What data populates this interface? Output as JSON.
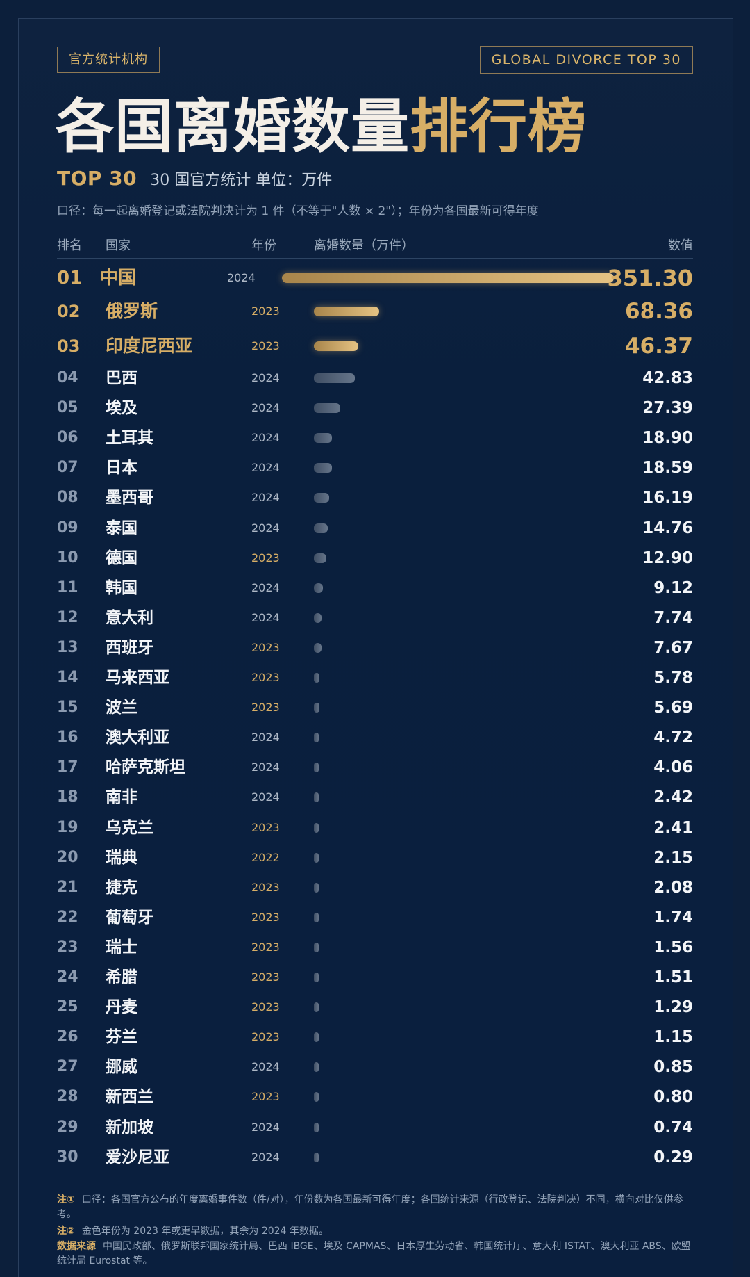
{
  "header": {
    "tag_left": "官方统计机构",
    "tag_right": "GLOBAL DIVORCE TOP 30",
    "title_white": "各国离婚数量",
    "title_gold": "排行榜",
    "sub_top": "TOP 30",
    "sub_text": "30 国官方统计   单位：万件",
    "note": "口径：每一起离婚登记或法院判决计为 1 件（不等于\"人数 × 2\"）；年份为各国最新可得年度"
  },
  "columns": {
    "rank": "排名",
    "country": "国家",
    "year": "年份",
    "bar": "离婚数量（万件）",
    "value": "数值"
  },
  "colors": {
    "gold": "#d7ae66",
    "background": "#0c1f3b",
    "grey_bar": "#5a697e"
  },
  "chart_data": {
    "type": "bar",
    "orientation": "horizontal",
    "unit": "万件",
    "rows": [
      {
        "rank": "01",
        "country": "中国",
        "year": "2024",
        "value": 351.3,
        "value_text": "351.30"
      },
      {
        "rank": "02",
        "country": "俄罗斯",
        "year": "2023",
        "value": 68.36,
        "value_text": "68.36"
      },
      {
        "rank": "03",
        "country": "印度尼西亚",
        "year": "2023",
        "value": 46.37,
        "value_text": "46.37"
      },
      {
        "rank": "04",
        "country": "巴西",
        "year": "2024",
        "value": 42.83,
        "value_text": "42.83"
      },
      {
        "rank": "05",
        "country": "埃及",
        "year": "2024",
        "value": 27.39,
        "value_text": "27.39"
      },
      {
        "rank": "06",
        "country": "土耳其",
        "year": "2024",
        "value": 18.9,
        "value_text": "18.90"
      },
      {
        "rank": "07",
        "country": "日本",
        "year": "2024",
        "value": 18.59,
        "value_text": "18.59"
      },
      {
        "rank": "08",
        "country": "墨西哥",
        "year": "2024",
        "value": 16.19,
        "value_text": "16.19"
      },
      {
        "rank": "09",
        "country": "泰国",
        "year": "2024",
        "value": 14.76,
        "value_text": "14.76"
      },
      {
        "rank": "10",
        "country": "德国",
        "year": "2023",
        "value": 12.9,
        "value_text": "12.90"
      },
      {
        "rank": "11",
        "country": "韩国",
        "year": "2024",
        "value": 9.12,
        "value_text": "9.12"
      },
      {
        "rank": "12",
        "country": "意大利",
        "year": "2024",
        "value": 7.74,
        "value_text": "7.74"
      },
      {
        "rank": "13",
        "country": "西班牙",
        "year": "2023",
        "value": 7.67,
        "value_text": "7.67"
      },
      {
        "rank": "14",
        "country": "马来西亚",
        "year": "2023",
        "value": 5.78,
        "value_text": "5.78"
      },
      {
        "rank": "15",
        "country": "波兰",
        "year": "2023",
        "value": 5.69,
        "value_text": "5.69"
      },
      {
        "rank": "16",
        "country": "澳大利亚",
        "year": "2024",
        "value": 4.72,
        "value_text": "4.72"
      },
      {
        "rank": "17",
        "country": "哈萨克斯坦",
        "year": "2024",
        "value": 4.06,
        "value_text": "4.06"
      },
      {
        "rank": "18",
        "country": "南非",
        "year": "2024",
        "value": 2.42,
        "value_text": "2.42"
      },
      {
        "rank": "19",
        "country": "乌克兰",
        "year": "2023",
        "value": 2.41,
        "value_text": "2.41"
      },
      {
        "rank": "20",
        "country": "瑞典",
        "year": "2022",
        "value": 2.15,
        "value_text": "2.15"
      },
      {
        "rank": "21",
        "country": "捷克",
        "year": "2023",
        "value": 2.08,
        "value_text": "2.08"
      },
      {
        "rank": "22",
        "country": "葡萄牙",
        "year": "2023",
        "value": 1.74,
        "value_text": "1.74"
      },
      {
        "rank": "23",
        "country": "瑞士",
        "year": "2023",
        "value": 1.56,
        "value_text": "1.56"
      },
      {
        "rank": "24",
        "country": "希腊",
        "year": "2023",
        "value": 1.51,
        "value_text": "1.51"
      },
      {
        "rank": "25",
        "country": "丹麦",
        "year": "2023",
        "value": 1.29,
        "value_text": "1.29"
      },
      {
        "rank": "26",
        "country": "芬兰",
        "year": "2023",
        "value": 1.15,
        "value_text": "1.15"
      },
      {
        "rank": "27",
        "country": "挪威",
        "year": "2024",
        "value": 0.85,
        "value_text": "0.85"
      },
      {
        "rank": "28",
        "country": "新西兰",
        "year": "2023",
        "value": 0.8,
        "value_text": "0.80"
      },
      {
        "rank": "29",
        "country": "新加坡",
        "year": "2024",
        "value": 0.74,
        "value_text": "0.74"
      },
      {
        "rank": "30",
        "country": "爱沙尼亚",
        "year": "2024",
        "value": 0.29,
        "value_text": "0.29"
      }
    ]
  },
  "footer": {
    "note1_label": "注①",
    "note1_text": "口径：各国官方公布的年度离婚事件数（件/对），年份数为各国最新可得年度；各国统计来源（行政登记、法院判决）不同，横向对比仅供参考。",
    "note2_label": "注②",
    "note2_text": "金色年份为 2023 年或更早数据，其余为 2024 年数据。",
    "source_label": "数据来源",
    "source_text": "中国民政部、俄罗斯联邦国家统计局、巴西 IBGE、埃及 CAPMAS、日本厚生劳动省、韩国统计厅、意大利 ISTAT、澳大利亚 ABS、欧盟统计局 Eurostat 等。"
  }
}
